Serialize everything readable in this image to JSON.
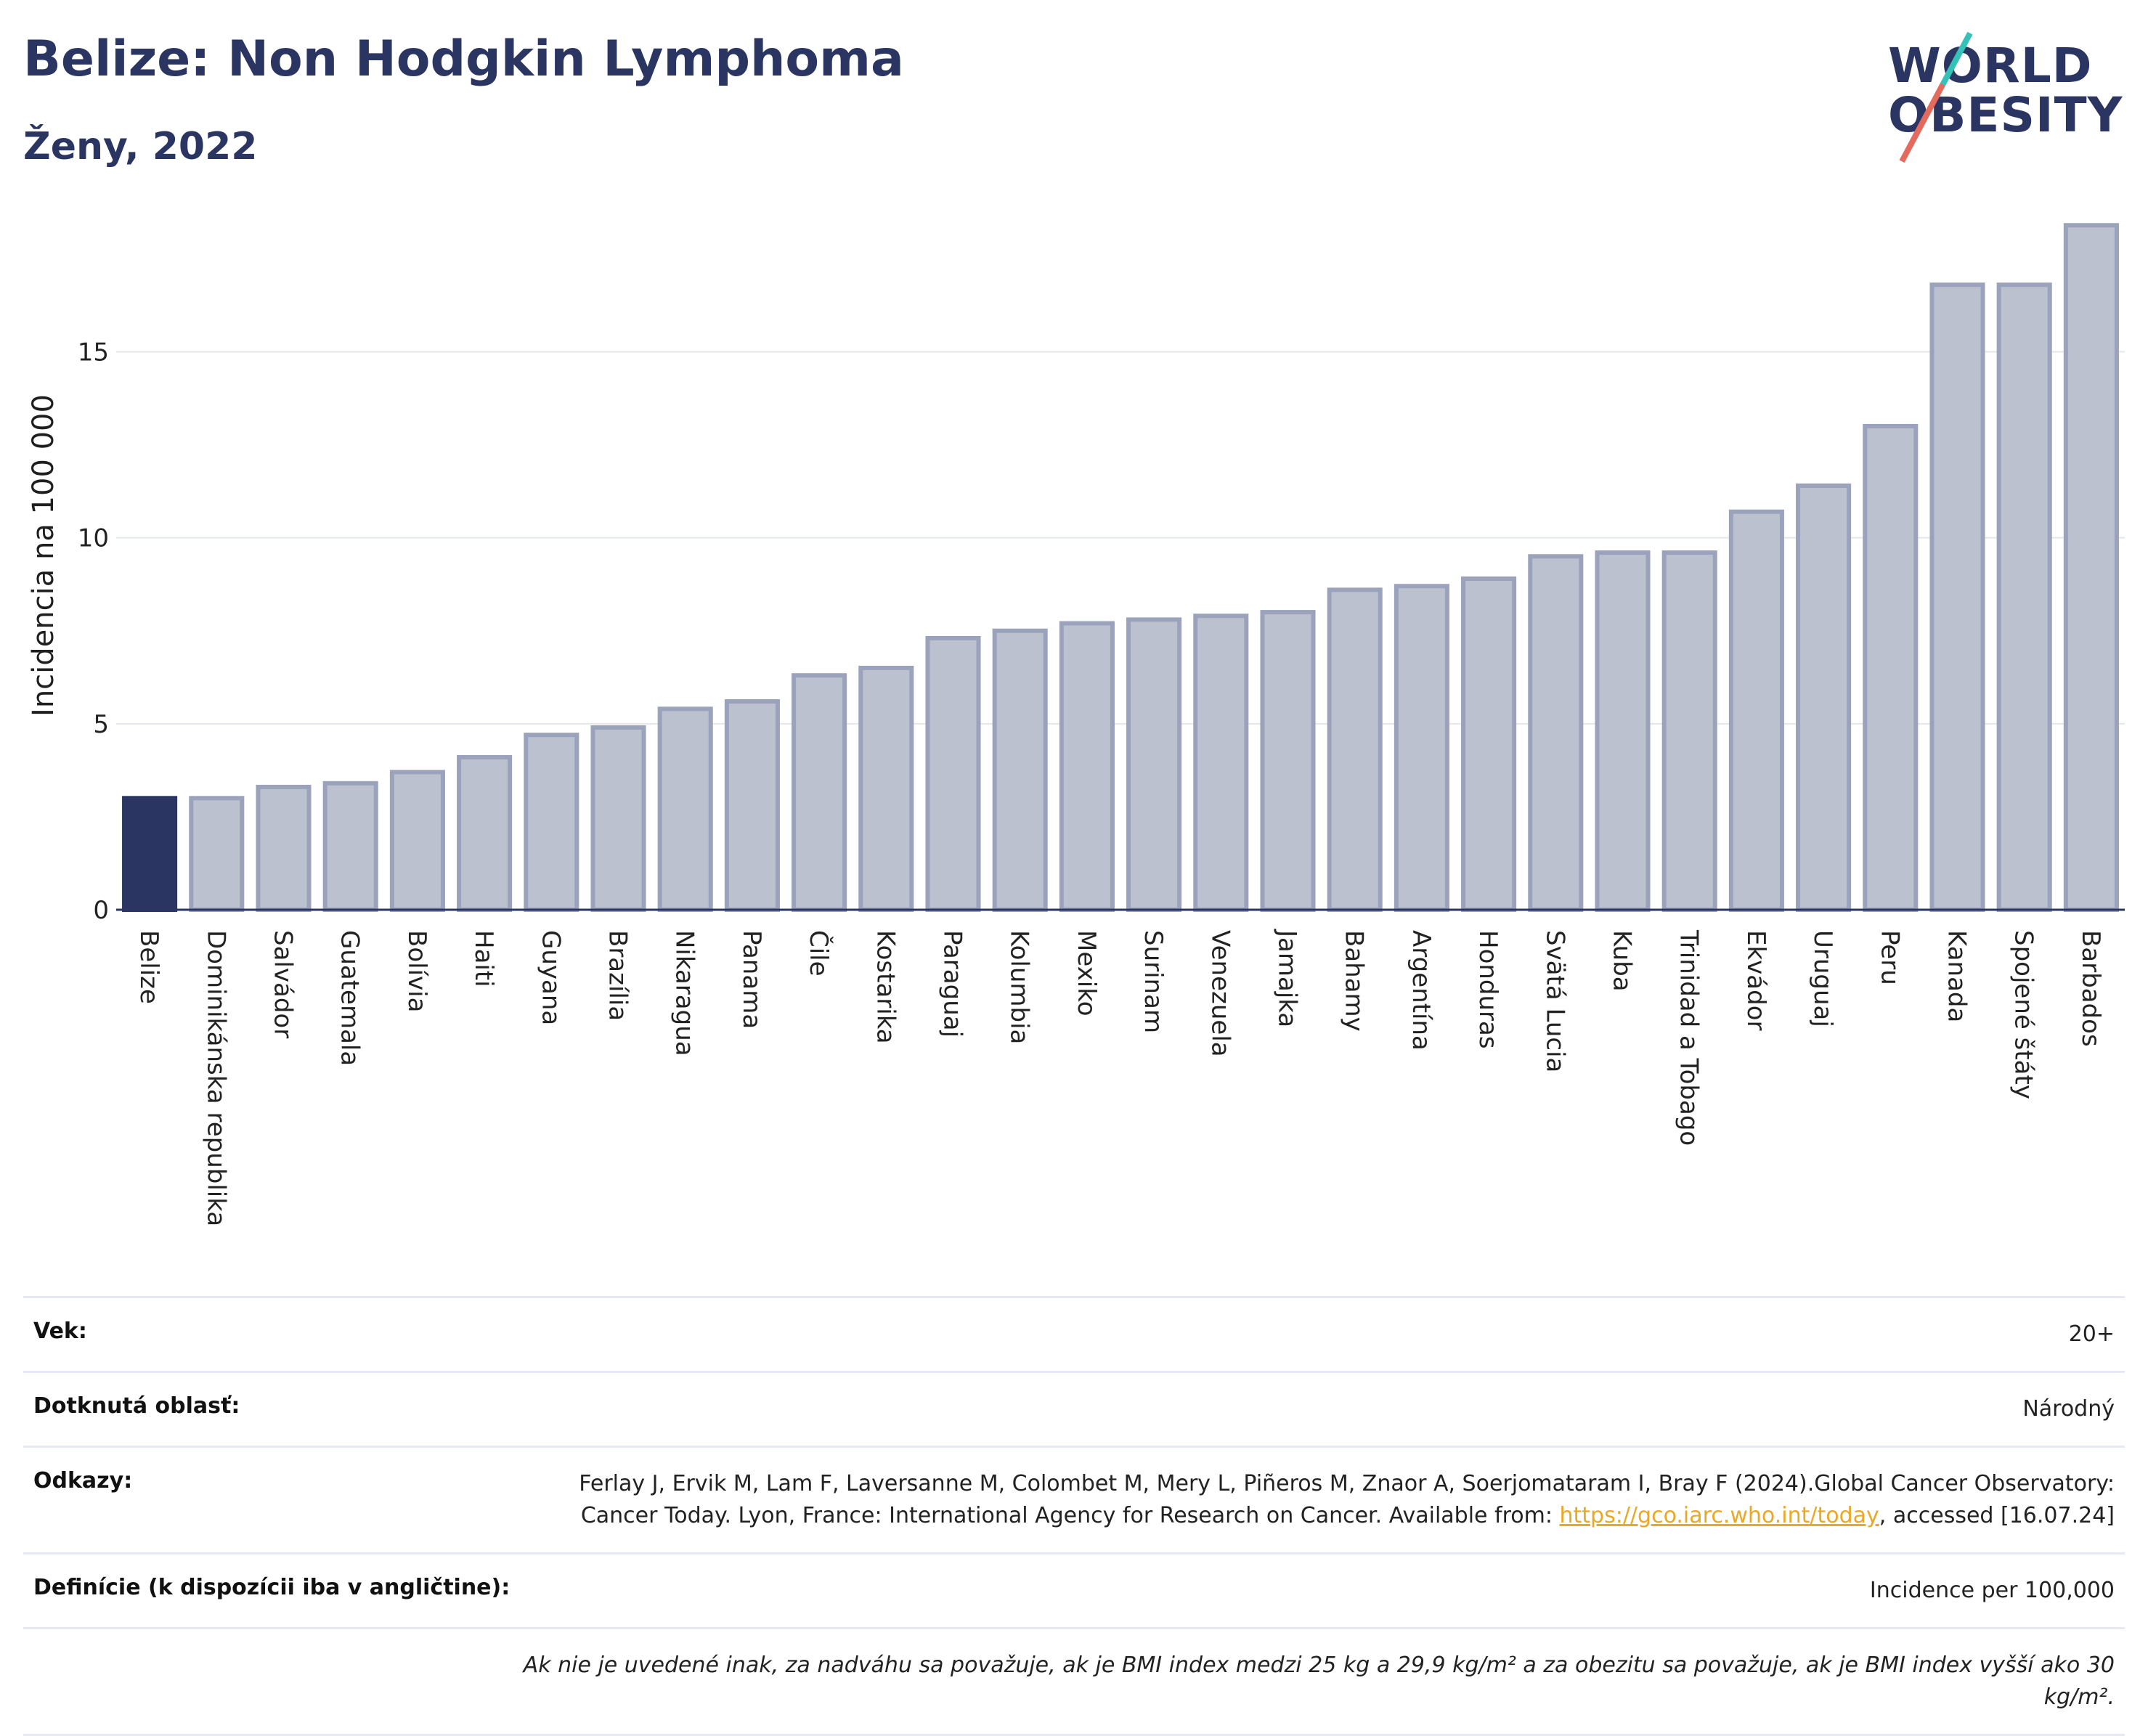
{
  "header": {
    "title": "Belize: Non Hodgkin Lymphoma",
    "subtitle": "Ženy, 2022",
    "logo_line1": "WORLD",
    "logo_line2": "OBESITY"
  },
  "colors": {
    "highlight": "#2a3561",
    "bar": "#bcc1cf",
    "bar_border": "#9aa3bb",
    "title": "#2a3561",
    "link": "#e9a826"
  },
  "chart_data": {
    "type": "bar",
    "title": "Belize: Non Hodgkin Lymphoma",
    "subtitle": "Ženy, 2022",
    "ylabel": "Incidencia na 100 000",
    "xlabel": "",
    "ylim": [
      0,
      18.6
    ],
    "yticks": [
      0,
      5,
      10,
      15
    ],
    "grid": true,
    "highlight": "Belize",
    "categories": [
      "Belize",
      "Dominikánska republika",
      "Salvádor",
      "Guatemala",
      "Bolívia",
      "Haiti",
      "Guyana",
      "Brazília",
      "Nikaragua",
      "Panama",
      "Čile",
      "Kostarika",
      "Paraguaj",
      "Kolumbia",
      "Mexiko",
      "Surinam",
      "Venezuela",
      "Jamajka",
      "Bahamy",
      "Argentína",
      "Honduras",
      "Svätá Lucia",
      "Kuba",
      "Trinidad a Tobago",
      "Ekvádor",
      "Uruguaj",
      "Peru",
      "Kanada",
      "Spojené štáty",
      "Barbados"
    ],
    "values": [
      3.0,
      3.0,
      3.3,
      3.4,
      3.7,
      4.1,
      4.7,
      4.9,
      5.4,
      5.6,
      6.3,
      6.5,
      7.3,
      7.5,
      7.7,
      7.8,
      7.9,
      8.0,
      8.6,
      8.7,
      8.9,
      9.5,
      9.6,
      9.6,
      10.7,
      11.4,
      13.0,
      16.8,
      16.8,
      18.4
    ]
  },
  "info": {
    "age_label": "Vek:",
    "age_value": "20+",
    "area_label": "Dotknutá oblasť:",
    "area_value": "Národný",
    "refs_label": "Odkazy:",
    "refs_text_1": "Ferlay J, Ervik M, Lam F, Laversanne M, Colombet M, Mery L, Piñeros M, Znaor A, Soerjomataram I, Bray F (2024).Global Cancer Observatory: Cancer Today. Lyon, France: International Agency for Research on Cancer. Available from: ",
    "refs_link": "https://gco.iarc.who.int/today",
    "refs_text_2": ", accessed [16.07.24]",
    "def_label": "Definície (k dispozícii iba v angličtine):",
    "def_value": "Incidence per 100,000",
    "note": "Ak nie je uvedené inak, za nadváhu sa považuje, ak je BMI index medzi 25 kg a 29,9 kg/m² a za obezitu sa považuje, ak je BMI index vyšší ako 30 kg/m²."
  }
}
